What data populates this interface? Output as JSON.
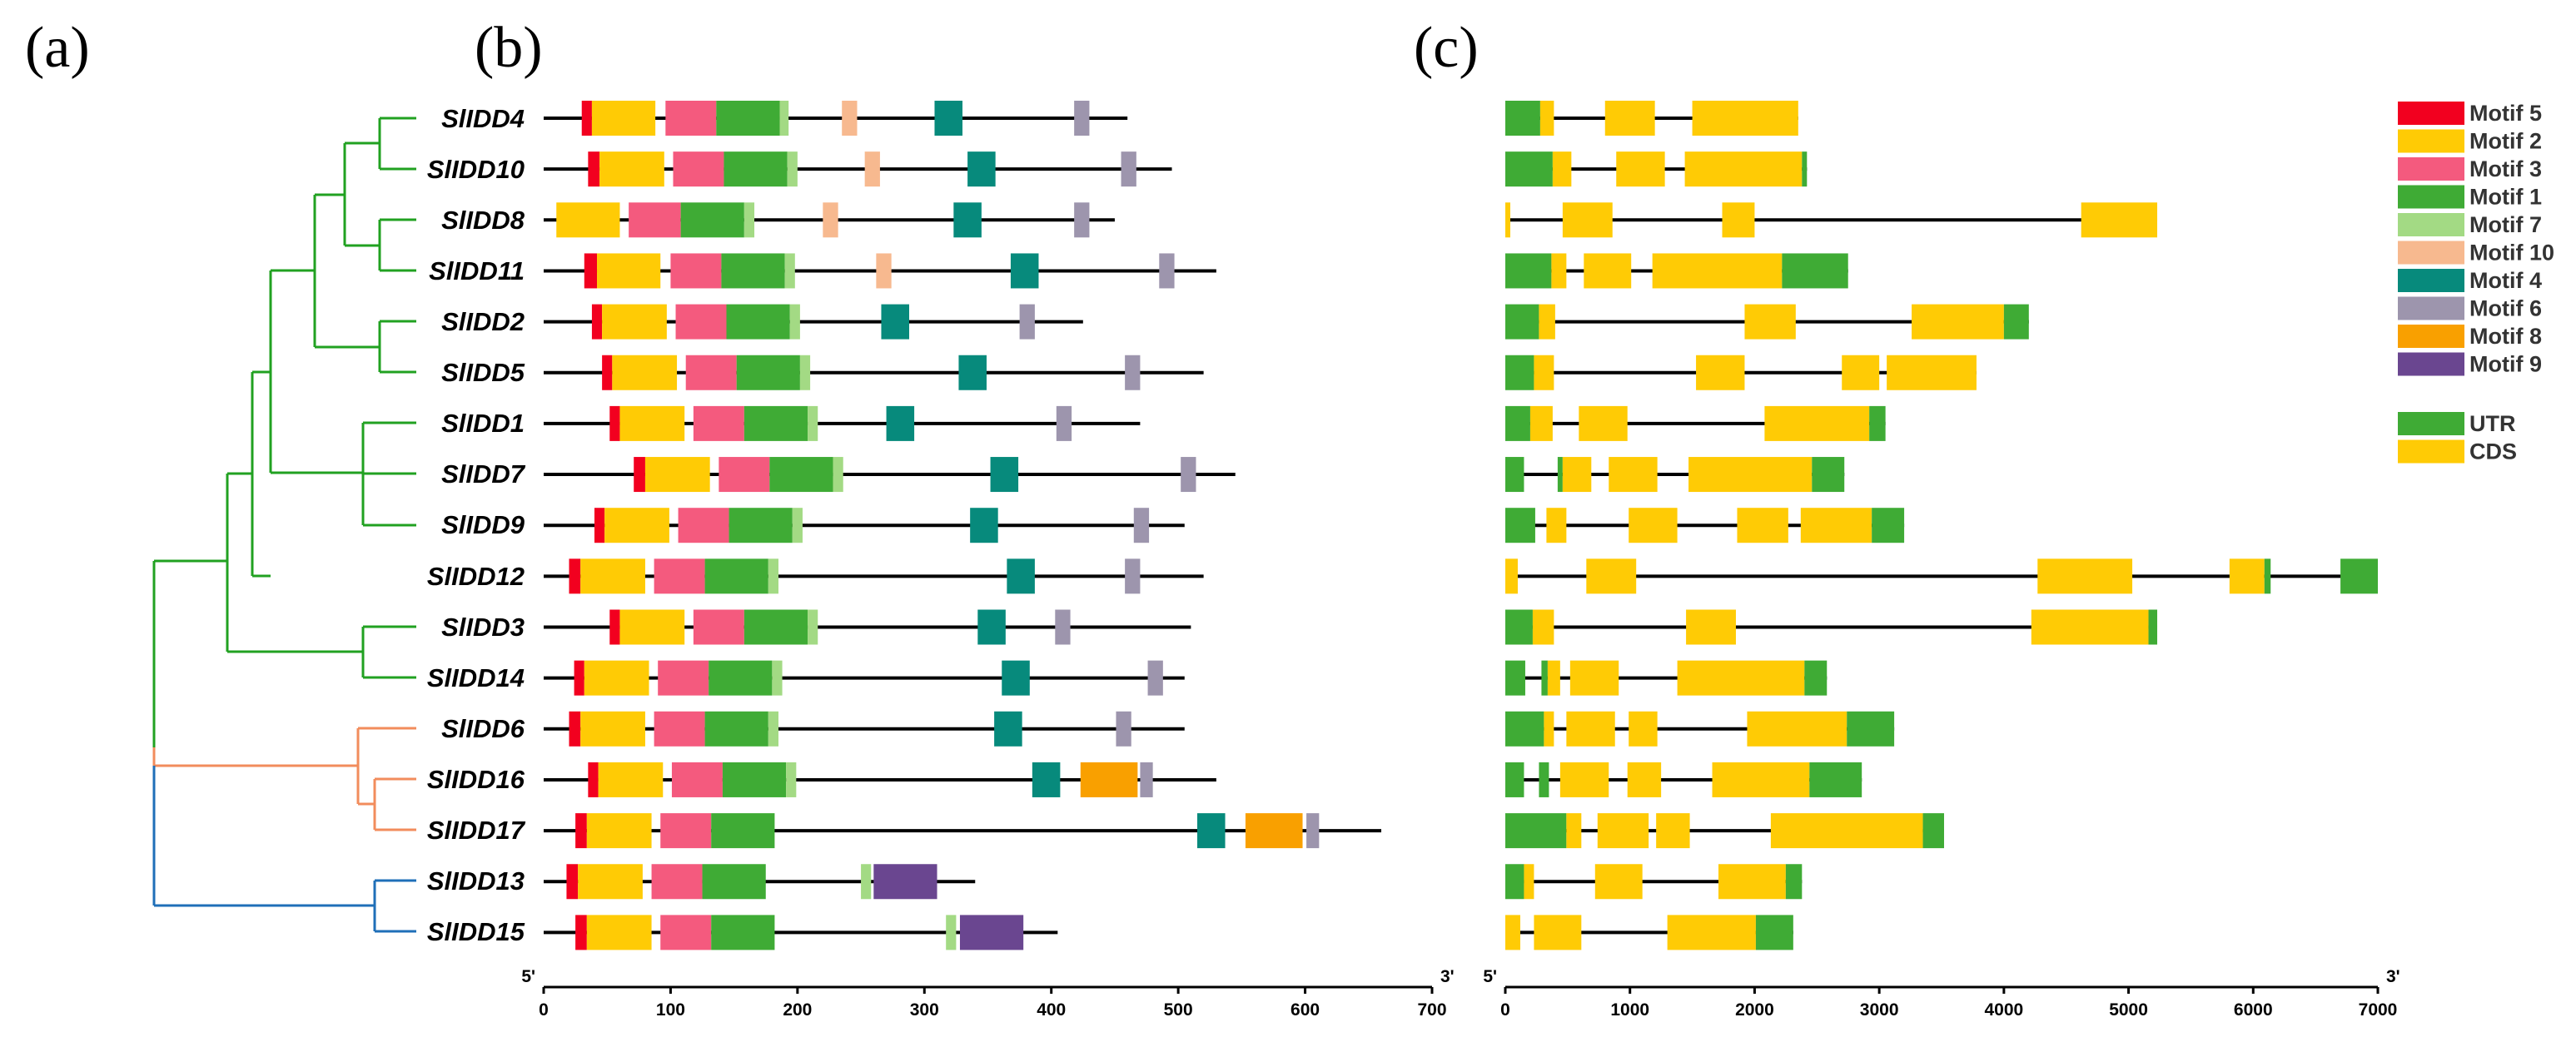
{
  "panel_labels": {
    "a": "(a)",
    "b": "(b)",
    "c": "(c)"
  },
  "colors": {
    "clade_green": "#21a121",
    "clade_orange": "#f28c5c",
    "clade_blue": "#1f6fb8",
    "line": "#000000"
  },
  "genes": [
    "SlIDD4",
    "SlIDD10",
    "SlIDD8",
    "SlIDD11",
    "SlIDD2",
    "SlIDD5",
    "SlIDD1",
    "SlIDD7",
    "SlIDD9",
    "SlIDD12",
    "SlIDD3",
    "SlIDD14",
    "SlIDD6",
    "SlIDD16",
    "SlIDD17",
    "SlIDD13",
    "SlIDD15"
  ],
  "motif_legend": [
    {
      "id": "m5",
      "label": "Motif 5",
      "color": "#f2001f"
    },
    {
      "id": "m2",
      "label": "Motif 2",
      "color": "#ffcb05"
    },
    {
      "id": "m3",
      "label": "Motif 3",
      "color": "#f45a7e"
    },
    {
      "id": "m1",
      "label": "Motif 1",
      "color": "#3fab35"
    },
    {
      "id": "m7",
      "label": "Motif 7",
      "color": "#a3da84"
    },
    {
      "id": "m10",
      "label": "Motif 10",
      "color": "#f7b98f"
    },
    {
      "id": "m4",
      "label": "Motif 4",
      "color": "#078a7c"
    },
    {
      "id": "m6",
      "label": "Motif 6",
      "color": "#9d95ad"
    },
    {
      "id": "m8",
      "label": "Motif 8",
      "color": "#f9a000"
    },
    {
      "id": "m9",
      "label": "Motif 9",
      "color": "#6a4690"
    }
  ],
  "structure_legend": [
    {
      "id": "utr",
      "label": "UTR",
      "color": "#3fab35"
    },
    {
      "id": "cds",
      "label": "CDS",
      "color": "#ffcb05"
    }
  ],
  "axis_b": {
    "min": 0,
    "max": 700,
    "ticks": [
      0,
      100,
      200,
      300,
      400,
      500,
      600,
      700
    ],
    "start_label": "5'",
    "end_label": "3'"
  },
  "axis_c": {
    "min": 0,
    "max": 7000,
    "ticks": [
      0,
      1000,
      2000,
      3000,
      4000,
      5000,
      6000,
      7000
    ],
    "start_label": "5'",
    "end_label": "3'"
  },
  "motifs": [
    {
      "gene": "SlIDD4",
      "length": 460,
      "motifs": [
        [
          "m5",
          30,
          38
        ],
        [
          "m2",
          38,
          88
        ],
        [
          "m3",
          96,
          136
        ],
        [
          "m1",
          136,
          186
        ],
        [
          "m7",
          186,
          193
        ],
        [
          "m10",
          235,
          247
        ],
        [
          "m4",
          308,
          330
        ],
        [
          "m6",
          418,
          430
        ]
      ]
    },
    {
      "gene": "SlIDD10",
      "length": 495,
      "motifs": [
        [
          "m5",
          35,
          44
        ],
        [
          "m2",
          44,
          95
        ],
        [
          "m3",
          102,
          142
        ],
        [
          "m1",
          142,
          192
        ],
        [
          "m7",
          192,
          200
        ],
        [
          "m10",
          253,
          265
        ],
        [
          "m4",
          334,
          356
        ],
        [
          "m6",
          455,
          467
        ]
      ]
    },
    {
      "gene": "SlIDD8",
      "length": 450,
      "motifs": [
        [
          "m2",
          10,
          60
        ],
        [
          "m3",
          67,
          108
        ],
        [
          "m1",
          108,
          158
        ],
        [
          "m7",
          158,
          166
        ],
        [
          "m10",
          220,
          232
        ],
        [
          "m4",
          323,
          345
        ],
        [
          "m6",
          418,
          430
        ]
      ]
    },
    {
      "gene": "SlIDD11",
      "length": 530,
      "motifs": [
        [
          "m5",
          32,
          42
        ],
        [
          "m2",
          42,
          92
        ],
        [
          "m3",
          100,
          140
        ],
        [
          "m1",
          140,
          190
        ],
        [
          "m7",
          190,
          198
        ],
        [
          "m10",
          262,
          274
        ],
        [
          "m4",
          368,
          390
        ],
        [
          "m6",
          485,
          497
        ]
      ]
    },
    {
      "gene": "SlIDD2",
      "length": 425,
      "motifs": [
        [
          "m5",
          38,
          46
        ],
        [
          "m2",
          46,
          97
        ],
        [
          "m3",
          104,
          144
        ],
        [
          "m1",
          144,
          194
        ],
        [
          "m7",
          194,
          202
        ],
        [
          "m4",
          266,
          288
        ],
        [
          "m6",
          375,
          387
        ]
      ]
    },
    {
      "gene": "SlIDD5",
      "length": 520,
      "motifs": [
        [
          "m5",
          46,
          54
        ],
        [
          "m2",
          54,
          105
        ],
        [
          "m3",
          112,
          152
        ],
        [
          "m1",
          152,
          202
        ],
        [
          "m7",
          202,
          210
        ],
        [
          "m4",
          327,
          349
        ],
        [
          "m6",
          458,
          470
        ]
      ]
    },
    {
      "gene": "SlIDD1",
      "length": 470,
      "motifs": [
        [
          "m5",
          52,
          60
        ],
        [
          "m2",
          60,
          111
        ],
        [
          "m3",
          118,
          158
        ],
        [
          "m1",
          158,
          208
        ],
        [
          "m7",
          208,
          216
        ],
        [
          "m4",
          270,
          292
        ],
        [
          "m6",
          404,
          416
        ]
      ]
    },
    {
      "gene": "SlIDD7",
      "length": 545,
      "motifs": [
        [
          "m5",
          71,
          80
        ],
        [
          "m2",
          80,
          131
        ],
        [
          "m3",
          138,
          178
        ],
        [
          "m1",
          178,
          228
        ],
        [
          "m7",
          228,
          236
        ],
        [
          "m4",
          352,
          374
        ],
        [
          "m6",
          502,
          514
        ]
      ]
    },
    {
      "gene": "SlIDD9",
      "length": 505,
      "motifs": [
        [
          "m5",
          40,
          48
        ],
        [
          "m2",
          48,
          99
        ],
        [
          "m3",
          106,
          146
        ],
        [
          "m1",
          146,
          196
        ],
        [
          "m7",
          196,
          204
        ],
        [
          "m4",
          336,
          358
        ],
        [
          "m6",
          465,
          477
        ]
      ]
    },
    {
      "gene": "SlIDD12",
      "length": 520,
      "motifs": [
        [
          "m5",
          20,
          29
        ],
        [
          "m2",
          29,
          80
        ],
        [
          "m3",
          87,
          127
        ],
        [
          "m1",
          127,
          177
        ],
        [
          "m7",
          177,
          185
        ],
        [
          "m4",
          365,
          387
        ],
        [
          "m6",
          458,
          470
        ]
      ]
    },
    {
      "gene": "SlIDD3",
      "length": 510,
      "motifs": [
        [
          "m5",
          52,
          60
        ],
        [
          "m2",
          60,
          111
        ],
        [
          "m3",
          118,
          158
        ],
        [
          "m1",
          158,
          208
        ],
        [
          "m7",
          208,
          216
        ],
        [
          "m4",
          342,
          364
        ],
        [
          "m6",
          403,
          415
        ]
      ]
    },
    {
      "gene": "SlIDD14",
      "length": 505,
      "motifs": [
        [
          "m5",
          24,
          32
        ],
        [
          "m2",
          32,
          83
        ],
        [
          "m3",
          90,
          130
        ],
        [
          "m1",
          130,
          180
        ],
        [
          "m7",
          180,
          188
        ],
        [
          "m4",
          361,
          383
        ],
        [
          "m6",
          476,
          488
        ]
      ]
    },
    {
      "gene": "SlIDD6",
      "length": 505,
      "motifs": [
        [
          "m5",
          20,
          29
        ],
        [
          "m2",
          29,
          80
        ],
        [
          "m3",
          87,
          127
        ],
        [
          "m1",
          127,
          177
        ],
        [
          "m7",
          177,
          185
        ],
        [
          "m4",
          355,
          377
        ],
        [
          "m6",
          451,
          463
        ]
      ]
    },
    {
      "gene": "SlIDD16",
      "length": 530,
      "motifs": [
        [
          "m5",
          35,
          43
        ],
        [
          "m2",
          43,
          94
        ],
        [
          "m3",
          101,
          141
        ],
        [
          "m1",
          141,
          191
        ],
        [
          "m7",
          191,
          199
        ],
        [
          "m4",
          385,
          407
        ],
        [
          "m8",
          423,
          468
        ],
        [
          "m6",
          470,
          480
        ]
      ]
    },
    {
      "gene": "SlIDD17",
      "length": 660,
      "motifs": [
        [
          "m5",
          25,
          34
        ],
        [
          "m2",
          34,
          85
        ],
        [
          "m3",
          92,
          132
        ],
        [
          "m1",
          132,
          182
        ],
        [
          "m4",
          515,
          537
        ],
        [
          "m8",
          553,
          598
        ],
        [
          "m6",
          601,
          611
        ]
      ]
    },
    {
      "gene": "SlIDD13",
      "length": 340,
      "motifs": [
        [
          "m5",
          18,
          27
        ],
        [
          "m2",
          27,
          78
        ],
        [
          "m3",
          85,
          125
        ],
        [
          "m1",
          125,
          175
        ],
        [
          "m7",
          250,
          258
        ],
        [
          "m9",
          260,
          310
        ]
      ]
    },
    {
      "gene": "SlIDD15",
      "length": 405,
      "motifs": [
        [
          "m5",
          25,
          34
        ],
        [
          "m2",
          34,
          85
        ],
        [
          "m3",
          92,
          132
        ],
        [
          "m1",
          132,
          182
        ],
        [
          "m7",
          317,
          325
        ],
        [
          "m9",
          328,
          378
        ]
      ]
    }
  ],
  "gene_structures": [
    {
      "gene": "SlIDD4",
      "length": 2350,
      "blocks": [
        [
          "utr",
          0,
          280
        ],
        [
          "cds",
          280,
          390
        ],
        [
          "cds",
          800,
          1200
        ],
        [
          "cds",
          1500,
          2350
        ]
      ]
    },
    {
      "gene": "SlIDD10",
      "length": 2420,
      "blocks": [
        [
          "utr",
          0,
          380
        ],
        [
          "cds",
          380,
          530
        ],
        [
          "cds",
          890,
          1280
        ],
        [
          "cds",
          1440,
          2380
        ],
        [
          "utr",
          2380,
          2420
        ]
      ]
    },
    {
      "gene": "SlIDD8",
      "length": 5230,
      "blocks": [
        [
          "cds",
          0,
          40
        ],
        [
          "cds",
          460,
          860
        ],
        [
          "cds",
          1740,
          2000
        ],
        [
          "cds",
          4620,
          5230
        ]
      ]
    },
    {
      "gene": "SlIDD11",
      "length": 2750,
      "blocks": [
        [
          "utr",
          0,
          370
        ],
        [
          "cds",
          370,
          490
        ],
        [
          "cds",
          630,
          1010
        ],
        [
          "cds",
          1180,
          2220
        ],
        [
          "utr",
          2220,
          2750
        ]
      ]
    },
    {
      "gene": "SlIDD2",
      "length": 4200,
      "blocks": [
        [
          "utr",
          0,
          270
        ],
        [
          "cds",
          270,
          400
        ],
        [
          "cds",
          1920,
          2330
        ],
        [
          "cds",
          3260,
          4000
        ],
        [
          "utr",
          4000,
          4200
        ]
      ]
    },
    {
      "gene": "SlIDD5",
      "length": 3780,
      "blocks": [
        [
          "utr",
          0,
          230
        ],
        [
          "cds",
          230,
          390
        ],
        [
          "cds",
          1530,
          1920
        ],
        [
          "cds",
          2700,
          3000
        ],
        [
          "cds",
          3060,
          3780
        ]
      ]
    },
    {
      "gene": "SlIDD1",
      "length": 3050,
      "blocks": [
        [
          "utr",
          0,
          200
        ],
        [
          "cds",
          200,
          380
        ],
        [
          "cds",
          590,
          980
        ],
        [
          "cds",
          2080,
          2920
        ],
        [
          "utr",
          2920,
          3050
        ]
      ]
    },
    {
      "gene": "SlIDD7",
      "length": 2720,
      "blocks": [
        [
          "utr",
          0,
          150
        ],
        [
          "utr",
          420,
          460
        ],
        [
          "cds",
          460,
          690
        ],
        [
          "cds",
          830,
          1220
        ],
        [
          "cds",
          1470,
          2460
        ],
        [
          "utr",
          2460,
          2720
        ]
      ]
    },
    {
      "gene": "SlIDD9",
      "length": 3200,
      "blocks": [
        [
          "utr",
          0,
          240
        ],
        [
          "cds",
          330,
          490
        ],
        [
          "cds",
          990,
          1380
        ],
        [
          "cds",
          1860,
          2270
        ],
        [
          "cds",
          2370,
          2940
        ],
        [
          "utr",
          2940,
          3200
        ]
      ]
    },
    {
      "gene": "SlIDD12",
      "length": 7000,
      "blocks": [
        [
          "cds",
          0,
          100
        ],
        [
          "cds",
          650,
          1050
        ],
        [
          "cds",
          4270,
          5030
        ],
        [
          "cds",
          5810,
          6090
        ],
        [
          "utr",
          6090,
          6140
        ],
        [
          "utr",
          6700,
          7000
        ]
      ]
    },
    {
      "gene": "SlIDD3",
      "length": 5230,
      "blocks": [
        [
          "utr",
          0,
          220
        ],
        [
          "cds",
          220,
          390
        ],
        [
          "cds",
          1450,
          1850
        ],
        [
          "cds",
          4220,
          5160
        ],
        [
          "utr",
          5160,
          5230
        ]
      ]
    },
    {
      "gene": "SlIDD14",
      "length": 2580,
      "blocks": [
        [
          "utr",
          0,
          160
        ],
        [
          "utr",
          290,
          340
        ],
        [
          "cds",
          340,
          440
        ],
        [
          "cds",
          520,
          910
        ],
        [
          "cds",
          1380,
          2400
        ],
        [
          "utr",
          2400,
          2580
        ]
      ]
    },
    {
      "gene": "SlIDD6",
      "length": 3120,
      "blocks": [
        [
          "utr",
          0,
          310
        ],
        [
          "cds",
          310,
          390
        ],
        [
          "cds",
          490,
          880
        ],
        [
          "cds",
          990,
          1220
        ],
        [
          "cds",
          1940,
          2740
        ],
        [
          "utr",
          2740,
          3120
        ]
      ]
    },
    {
      "gene": "SlIDD16",
      "length": 2860,
      "blocks": [
        [
          "utr",
          0,
          150
        ],
        [
          "utr",
          270,
          350
        ],
        [
          "cds",
          440,
          830
        ],
        [
          "cds",
          980,
          1250
        ],
        [
          "cds",
          1660,
          2440
        ],
        [
          "utr",
          2440,
          2860
        ]
      ]
    },
    {
      "gene": "SlIDD17",
      "length": 3520,
      "blocks": [
        [
          "utr",
          0,
          490
        ],
        [
          "cds",
          490,
          610
        ],
        [
          "cds",
          740,
          1150
        ],
        [
          "cds",
          1210,
          1480
        ],
        [
          "cds",
          2130,
          3350
        ],
        [
          "utr",
          3350,
          3520
        ]
      ]
    },
    {
      "gene": "SlIDD13",
      "length": 2380,
      "blocks": [
        [
          "utr",
          0,
          150
        ],
        [
          "cds",
          150,
          230
        ],
        [
          "cds",
          720,
          1100
        ],
        [
          "cds",
          1710,
          2250
        ],
        [
          "utr",
          2250,
          2380
        ]
      ]
    },
    {
      "gene": "SlIDD15",
      "length": 2310,
      "blocks": [
        [
          "cds",
          0,
          120
        ],
        [
          "cds",
          230,
          610
        ],
        [
          "cds",
          1300,
          2010
        ],
        [
          "utr",
          2010,
          2310
        ]
      ]
    }
  ]
}
